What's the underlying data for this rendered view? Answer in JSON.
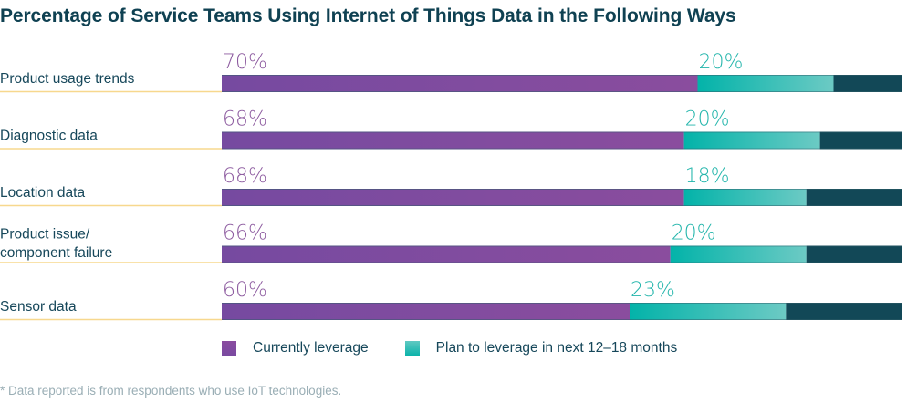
{
  "title": "Percentage of Service Teams Using Internet of Things Data in the Following Ways",
  "chart_data": {
    "type": "bar",
    "orientation": "horizontal",
    "stacked": true,
    "title": "Percentage of Service Teams Using Internet of Things Data in the Following Ways",
    "categories": [
      [
        "Product usage trends"
      ],
      [
        "Diagnostic data"
      ],
      [
        "Location data"
      ],
      [
        "Product issue/",
        "component failure"
      ],
      [
        "Sensor data"
      ]
    ],
    "series": [
      {
        "name": "Currently leverage",
        "values": [
          70,
          68,
          68,
          66,
          60
        ],
        "color": "#7b4a9f",
        "label_color": "#8c5a9f"
      },
      {
        "name": "Plan to leverage in next 12–18 months",
        "values": [
          20,
          20,
          18,
          20,
          23
        ],
        "color": "#1fb8ae",
        "label_color": "#22b5ab"
      },
      {
        "name": "Remainder",
        "values": [
          10,
          12,
          14,
          14,
          17
        ],
        "color": "#124857",
        "label_color": null
      }
    ],
    "value_suffix": "%",
    "xlim": [
      0,
      100
    ],
    "legend_position": "bottom",
    "grid": false
  },
  "legend": {
    "current": "Currently leverage",
    "plan": "Plan to leverage in next 12–18 months"
  },
  "footnote": "* Data reported is from respondents who use IoT technologies."
}
